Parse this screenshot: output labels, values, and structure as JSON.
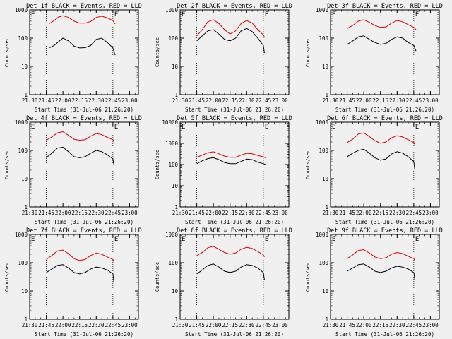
{
  "page": {
    "background": "#f0f0f0"
  },
  "colors": {
    "events": "#000000",
    "lld": "#e00000",
    "axis": "#000000"
  },
  "chart_data": [
    {
      "type": "line",
      "title": "Det 1f BLACK = Events, RED = LLD",
      "xlabel": "Start Time (31-Jul-06 21:26:20)",
      "ylabel": "Counts/sec",
      "yscale": "log",
      "ylim": [
        1,
        1000
      ],
      "xlim": [
        "21:30",
        "23:08"
      ],
      "x_ticks": [
        "21:30",
        "21:45",
        "22:00",
        "22:15",
        "22:30",
        "22:45",
        "23:00"
      ],
      "y_ticks": [
        "1",
        "10",
        "100",
        "1000"
      ],
      "markers": [
        {
          "x": "21:45",
          "label": ""
        },
        {
          "x": "22:45",
          "label": "E"
        }
      ],
      "corner_label": "E",
      "x": [
        "21:48",
        "21:52",
        "21:56",
        "22:00",
        "22:05",
        "22:10",
        "22:15",
        "22:20",
        "22:25",
        "22:30",
        "22:35",
        "22:40",
        "22:45",
        "22:47"
      ],
      "series": [
        {
          "name": "Events",
          "values": [
            46,
            55,
            75,
            100,
            80,
            52,
            45,
            46,
            55,
            90,
            100,
            70,
            45,
            25
          ]
        },
        {
          "name": "LLD",
          "values": [
            330,
            420,
            560,
            620,
            540,
            400,
            340,
            340,
            390,
            540,
            600,
            520,
            420,
            320
          ]
        }
      ]
    },
    {
      "type": "line",
      "title": "Det 2f BLACK = Events, RED = LLD",
      "xlabel": "Start Time (31-Jul-06 21:26:20)",
      "ylabel": "Counts/sec",
      "yscale": "log",
      "ylim": [
        1,
        1000
      ],
      "xlim": [
        "21:30",
        "23:08"
      ],
      "x_ticks": [
        "21:30",
        "21:45",
        "22:00",
        "22:15",
        "22:30",
        "22:45",
        "23:00"
      ],
      "y_ticks": [
        "1",
        "10",
        "100",
        "1000"
      ],
      "markers": [
        {
          "x": "21:45",
          "label": ""
        },
        {
          "x": "22:45",
          "label": "E"
        }
      ],
      "corner_label": "E",
      "x": [
        "21:45",
        "21:50",
        "21:55",
        "22:00",
        "22:05",
        "22:10",
        "22:15",
        "22:20",
        "22:25",
        "22:30",
        "22:35",
        "22:40",
        "22:45",
        "22:46"
      ],
      "series": [
        {
          "name": "Events",
          "values": [
            80,
            120,
            180,
            200,
            140,
            90,
            80,
            100,
            180,
            220,
            170,
            100,
            55,
            30
          ]
        },
        {
          "name": "LLD",
          "values": [
            120,
            200,
            380,
            450,
            330,
            200,
            140,
            180,
            330,
            420,
            340,
            200,
            130,
            110
          ]
        }
      ]
    },
    {
      "type": "line",
      "title": "Det 3f BLACK = Events, RED = LLD",
      "xlabel": "Start Time (31-Jul-06 21:26:20)",
      "ylabel": "Counts/sec",
      "yscale": "log",
      "ylim": [
        1,
        1000
      ],
      "xlim": [
        "21:30",
        "23:08"
      ],
      "x_ticks": [
        "21:30",
        "21:45",
        "22:00",
        "22:15",
        "22:30",
        "22:45",
        "23:00"
      ],
      "y_ticks": [
        "1",
        "10",
        "100",
        "1000"
      ],
      "markers": [
        {
          "x": "21:45",
          "label": ""
        },
        {
          "x": "22:45",
          "label": "E"
        }
      ],
      "corner_label": "E",
      "x": [
        "21:45",
        "21:50",
        "21:55",
        "22:00",
        "22:05",
        "22:10",
        "22:15",
        "22:20",
        "22:25",
        "22:30",
        "22:35",
        "22:40",
        "22:45",
        "22:47"
      ],
      "series": [
        {
          "name": "Events",
          "values": [
            60,
            80,
            110,
            120,
            90,
            70,
            60,
            65,
            90,
            110,
            100,
            70,
            55,
            35
          ]
        },
        {
          "name": "LLD",
          "values": [
            220,
            280,
            400,
            450,
            360,
            280,
            240,
            250,
            340,
            420,
            380,
            300,
            240,
            200
          ]
        }
      ]
    },
    {
      "type": "line",
      "title": "Det 4f BLACK = Events, RED = LLD",
      "xlabel": "Start Time (31-Jul-06 21:26:20)",
      "ylabel": "Counts/sec",
      "yscale": "log",
      "ylim": [
        1,
        1000
      ],
      "xlim": [
        "21:30",
        "23:08"
      ],
      "x_ticks": [
        "21:30",
        "21:45",
        "22:00",
        "22:15",
        "22:30",
        "22:45",
        "23:00"
      ],
      "y_ticks": [
        "1",
        "10",
        "100",
        "1000"
      ],
      "markers": [
        {
          "x": "21:45",
          "label": ""
        },
        {
          "x": "22:45",
          "label": "E"
        }
      ],
      "corner_label": "E",
      "x": [
        "21:45",
        "21:50",
        "21:55",
        "22:00",
        "22:05",
        "22:10",
        "22:15",
        "22:20",
        "22:25",
        "22:30",
        "22:35",
        "22:40",
        "22:45",
        "22:46"
      ],
      "series": [
        {
          "name": "Events",
          "values": [
            55,
            80,
            120,
            130,
            90,
            60,
            55,
            60,
            80,
            100,
            90,
            70,
            50,
            30
          ]
        },
        {
          "name": "LLD",
          "values": [
            230,
            300,
            420,
            460,
            340,
            250,
            230,
            240,
            320,
            400,
            360,
            290,
            240,
            210
          ]
        }
      ]
    },
    {
      "type": "line",
      "title": "Det 5f BLACK = Events, RED = LLD",
      "xlabel": "Start Time (31-Jul-06 21:26:20)",
      "ylabel": "Counts/sec",
      "yscale": "log",
      "ylim": [
        1,
        10000
      ],
      "xlim": [
        "21:30",
        "23:08"
      ],
      "x_ticks": [
        "21:30",
        "21:45",
        "22:00",
        "22:15",
        "22:30",
        "22:45",
        "23:00"
      ],
      "y_ticks": [
        "1",
        "10",
        "100",
        "1000",
        "10000"
      ],
      "markers": [
        {
          "x": "21:45",
          "label": ""
        },
        {
          "x": "22:45",
          "label": "E"
        }
      ],
      "corner_label": "E",
      "x": [
        "21:45",
        "21:50",
        "21:55",
        "22:00",
        "22:05",
        "22:10",
        "22:15",
        "22:20",
        "22:25",
        "22:30",
        "22:35",
        "22:40",
        "22:45",
        "22:47"
      ],
      "series": [
        {
          "name": "Events",
          "values": [
            110,
            150,
            190,
            210,
            170,
            125,
            110,
            110,
            140,
            180,
            170,
            130,
            110,
            100
          ]
        },
        {
          "name": "LLD",
          "values": [
            220,
            280,
            360,
            400,
            320,
            250,
            220,
            220,
            280,
            340,
            320,
            270,
            230,
            210
          ]
        }
      ]
    },
    {
      "type": "line",
      "title": "Det 6f BLACK = Events, RED = LLD",
      "xlabel": "Start Time (31-Jul-06 21:26:20)",
      "ylabel": "Counts/sec",
      "yscale": "log",
      "ylim": [
        1,
        1000
      ],
      "xlim": [
        "21:30",
        "23:08"
      ],
      "x_ticks": [
        "21:30",
        "21:45",
        "22:00",
        "22:15",
        "22:30",
        "22:45",
        "23:00"
      ],
      "y_ticks": [
        "1",
        "10",
        "100",
        "1000"
      ],
      "markers": [
        {
          "x": "21:45",
          "label": ""
        },
        {
          "x": "22:45",
          "label": "E"
        }
      ],
      "corner_label": "E",
      "x": [
        "21:45",
        "21:50",
        "21:55",
        "22:00",
        "22:05",
        "22:10",
        "22:15",
        "22:20",
        "22:25",
        "22:30",
        "22:35",
        "22:40",
        "22:45",
        "22:46"
      ],
      "series": [
        {
          "name": "Events",
          "values": [
            60,
            80,
            100,
            110,
            80,
            55,
            45,
            50,
            75,
            90,
            80,
            60,
            40,
            20
          ]
        },
        {
          "name": "LLD",
          "values": [
            190,
            250,
            380,
            420,
            310,
            220,
            180,
            200,
            280,
            330,
            300,
            240,
            190,
            160
          ]
        }
      ]
    },
    {
      "type": "line",
      "title": "Det 7f BLACK = Events, RED = LLD",
      "xlabel": "Start Time (31-Jul-06 21:26:20)",
      "ylabel": "Counts/sec",
      "yscale": "log",
      "ylim": [
        1,
        1000
      ],
      "xlim": [
        "21:30",
        "23:08"
      ],
      "x_ticks": [
        "21:30",
        "21:45",
        "22:00",
        "22:15",
        "22:30",
        "22:45",
        "23:00"
      ],
      "y_ticks": [
        "1",
        "10",
        "100",
        "1000"
      ],
      "markers": [
        {
          "x": "21:45",
          "label": ""
        },
        {
          "x": "22:45",
          "label": "E"
        }
      ],
      "corner_label": "E",
      "x": [
        "21:45",
        "21:50",
        "21:55",
        "22:00",
        "22:05",
        "22:10",
        "22:15",
        "22:20",
        "22:25",
        "22:30",
        "22:35",
        "22:40",
        "22:45",
        "22:46"
      ],
      "series": [
        {
          "name": "Events",
          "values": [
            45,
            60,
            80,
            85,
            65,
            45,
            40,
            45,
            60,
            70,
            65,
            55,
            40,
            20
          ]
        },
        {
          "name": "LLD",
          "values": [
            130,
            180,
            260,
            280,
            210,
            140,
            120,
            130,
            180,
            220,
            200,
            160,
            130,
            110
          ]
        }
      ]
    },
    {
      "type": "line",
      "title": "Det 8f BLACK = Events, RED = LLD",
      "xlabel": "Start Time (31-Jul-06 21:26:20)",
      "ylabel": "Counts/sec",
      "yscale": "log",
      "ylim": [
        1,
        1000
      ],
      "xlim": [
        "21:30",
        "23:08"
      ],
      "x_ticks": [
        "21:30",
        "21:45",
        "22:00",
        "22:15",
        "22:30",
        "22:45",
        "23:00"
      ],
      "y_ticks": [
        "1",
        "10",
        "100",
        "1000"
      ],
      "markers": [
        {
          "x": "21:45",
          "label": ""
        },
        {
          "x": "22:45",
          "label": "E"
        }
      ],
      "corner_label": "E",
      "x": [
        "21:45",
        "21:50",
        "21:55",
        "22:00",
        "22:05",
        "22:10",
        "22:15",
        "22:20",
        "22:25",
        "22:30",
        "22:35",
        "22:40",
        "22:45",
        "22:46"
      ],
      "series": [
        {
          "name": "Events",
          "values": [
            40,
            55,
            80,
            90,
            70,
            50,
            45,
            50,
            70,
            85,
            80,
            65,
            45,
            25
          ]
        },
        {
          "name": "LLD",
          "values": [
            180,
            230,
            340,
            380,
            300,
            230,
            200,
            220,
            300,
            350,
            320,
            250,
            190,
            160
          ]
        }
      ]
    },
    {
      "type": "line",
      "title": "Det 9f BLACK = Events, RED = LLD",
      "xlabel": "Start Time (31-Jul-06 21:26:20)",
      "ylabel": "Counts/sec",
      "yscale": "log",
      "ylim": [
        1,
        1000
      ],
      "xlim": [
        "21:30",
        "23:08"
      ],
      "x_ticks": [
        "21:30",
        "21:45",
        "22:00",
        "22:15",
        "22:30",
        "22:45",
        "23:00"
      ],
      "y_ticks": [
        "1",
        "10",
        "100",
        "1000"
      ],
      "markers": [
        {
          "x": "21:45",
          "label": ""
        },
        {
          "x": "22:45",
          "label": "E"
        }
      ],
      "corner_label": "E",
      "x": [
        "21:45",
        "21:50",
        "21:55",
        "22:00",
        "22:05",
        "22:10",
        "22:15",
        "22:20",
        "22:25",
        "22:30",
        "22:35",
        "22:40",
        "22:45",
        "22:46"
      ],
      "series": [
        {
          "name": "Events",
          "values": [
            50,
            65,
            85,
            90,
            70,
            50,
            45,
            50,
            65,
            75,
            70,
            60,
            45,
            25
          ]
        },
        {
          "name": "LLD",
          "values": [
            140,
            190,
            270,
            290,
            220,
            160,
            140,
            150,
            200,
            230,
            210,
            170,
            140,
            120
          ]
        }
      ]
    }
  ]
}
